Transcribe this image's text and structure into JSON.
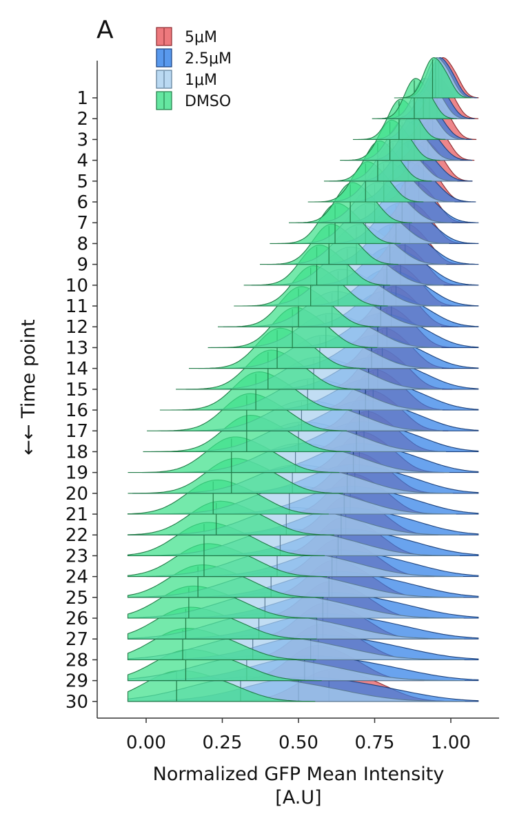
{
  "chart_data": {
    "type": "ridgeline",
    "panel_label": "A",
    "xlabel_line1": "Normalized GFP Mean Intensity",
    "xlabel_line2": "[A.U]",
    "ylabel": "←← Time point",
    "xlim": [
      -0.16,
      1.16
    ],
    "x_ticks": [
      0.0,
      0.25,
      0.5,
      0.75,
      1.0
    ],
    "x_tick_labels": [
      "0.00",
      "0.25",
      "0.50",
      "0.75",
      "1.00"
    ],
    "y_categories": [
      "1",
      "2",
      "3",
      "4",
      "5",
      "6",
      "7",
      "8",
      "9",
      "10",
      "11",
      "12",
      "13",
      "14",
      "15",
      "16",
      "17",
      "18",
      "19",
      "20",
      "21",
      "22",
      "23",
      "24",
      "25",
      "26",
      "27",
      "28",
      "29",
      "30"
    ],
    "legend_position": "top-left",
    "series": [
      {
        "name": "5μM",
        "color": "#e8585d",
        "medians": [
          0.97,
          0.955,
          0.94,
          0.925,
          0.91,
          0.895,
          0.88,
          0.865,
          0.85,
          0.835,
          0.82,
          0.805,
          0.79,
          0.775,
          0.76,
          0.745,
          0.73,
          0.715,
          0.7,
          0.685,
          0.67,
          0.655,
          0.64,
          0.625,
          0.61,
          0.595,
          0.58,
          0.565,
          0.55,
          0.6
        ],
        "widths": [
          0.03,
          0.032,
          0.034,
          0.036,
          0.038,
          0.04,
          0.042,
          0.044,
          0.046,
          0.048,
          0.05,
          0.052,
          0.054,
          0.056,
          0.058,
          0.06,
          0.062,
          0.064,
          0.066,
          0.068,
          0.07,
          0.072,
          0.074,
          0.076,
          0.078,
          0.08,
          0.082,
          0.084,
          0.086,
          0.1
        ]
      },
      {
        "name": "2.5μM",
        "color": "#2f7fe8",
        "medians": [
          0.96,
          0.93,
          0.9,
          0.88,
          0.86,
          0.85,
          0.84,
          0.82,
          0.8,
          0.79,
          0.78,
          0.77,
          0.76,
          0.74,
          0.73,
          0.72,
          0.7,
          0.69,
          0.68,
          0.66,
          0.65,
          0.64,
          0.63,
          0.61,
          0.6,
          0.58,
          0.56,
          0.54,
          0.52,
          0.5
        ],
        "widths": [
          0.03,
          0.035,
          0.04,
          0.045,
          0.05,
          0.055,
          0.06,
          0.065,
          0.07,
          0.075,
          0.08,
          0.085,
          0.09,
          0.095,
          0.1,
          0.105,
          0.11,
          0.115,
          0.12,
          0.125,
          0.13,
          0.135,
          0.14,
          0.145,
          0.15,
          0.155,
          0.16,
          0.165,
          0.17,
          0.175
        ]
      },
      {
        "name": "1μM",
        "color": "#a9d0ef",
        "medians": [
          0.95,
          0.91,
          0.88,
          0.84,
          0.81,
          0.78,
          0.75,
          0.72,
          0.69,
          0.66,
          0.63,
          0.61,
          0.59,
          0.57,
          0.55,
          0.53,
          0.51,
          0.5,
          0.49,
          0.48,
          0.47,
          0.46,
          0.44,
          0.43,
          0.41,
          0.39,
          0.37,
          0.35,
          0.33,
          0.31
        ],
        "widths": [
          0.03,
          0.035,
          0.04,
          0.045,
          0.05,
          0.055,
          0.06,
          0.065,
          0.07,
          0.075,
          0.08,
          0.085,
          0.09,
          0.095,
          0.1,
          0.105,
          0.11,
          0.115,
          0.12,
          0.125,
          0.13,
          0.135,
          0.14,
          0.145,
          0.15,
          0.155,
          0.16,
          0.165,
          0.17,
          0.175
        ]
      },
      {
        "name": "DMSO",
        "color": "#3fe08a",
        "medians": [
          0.94,
          0.88,
          0.83,
          0.8,
          0.76,
          0.72,
          0.67,
          0.62,
          0.6,
          0.56,
          0.54,
          0.5,
          0.48,
          0.43,
          0.4,
          0.36,
          0.33,
          0.33,
          0.28,
          0.28,
          0.22,
          0.23,
          0.19,
          0.19,
          0.17,
          0.14,
          0.13,
          0.12,
          0.13,
          0.1
        ],
        "widths": [
          0.03,
          0.033,
          0.036,
          0.039,
          0.042,
          0.045,
          0.048,
          0.051,
          0.054,
          0.057,
          0.06,
          0.063,
          0.066,
          0.069,
          0.072,
          0.075,
          0.078,
          0.081,
          0.084,
          0.087,
          0.09,
          0.092,
          0.094,
          0.096,
          0.098,
          0.1,
          0.102,
          0.104,
          0.106,
          0.108
        ]
      }
    ]
  }
}
